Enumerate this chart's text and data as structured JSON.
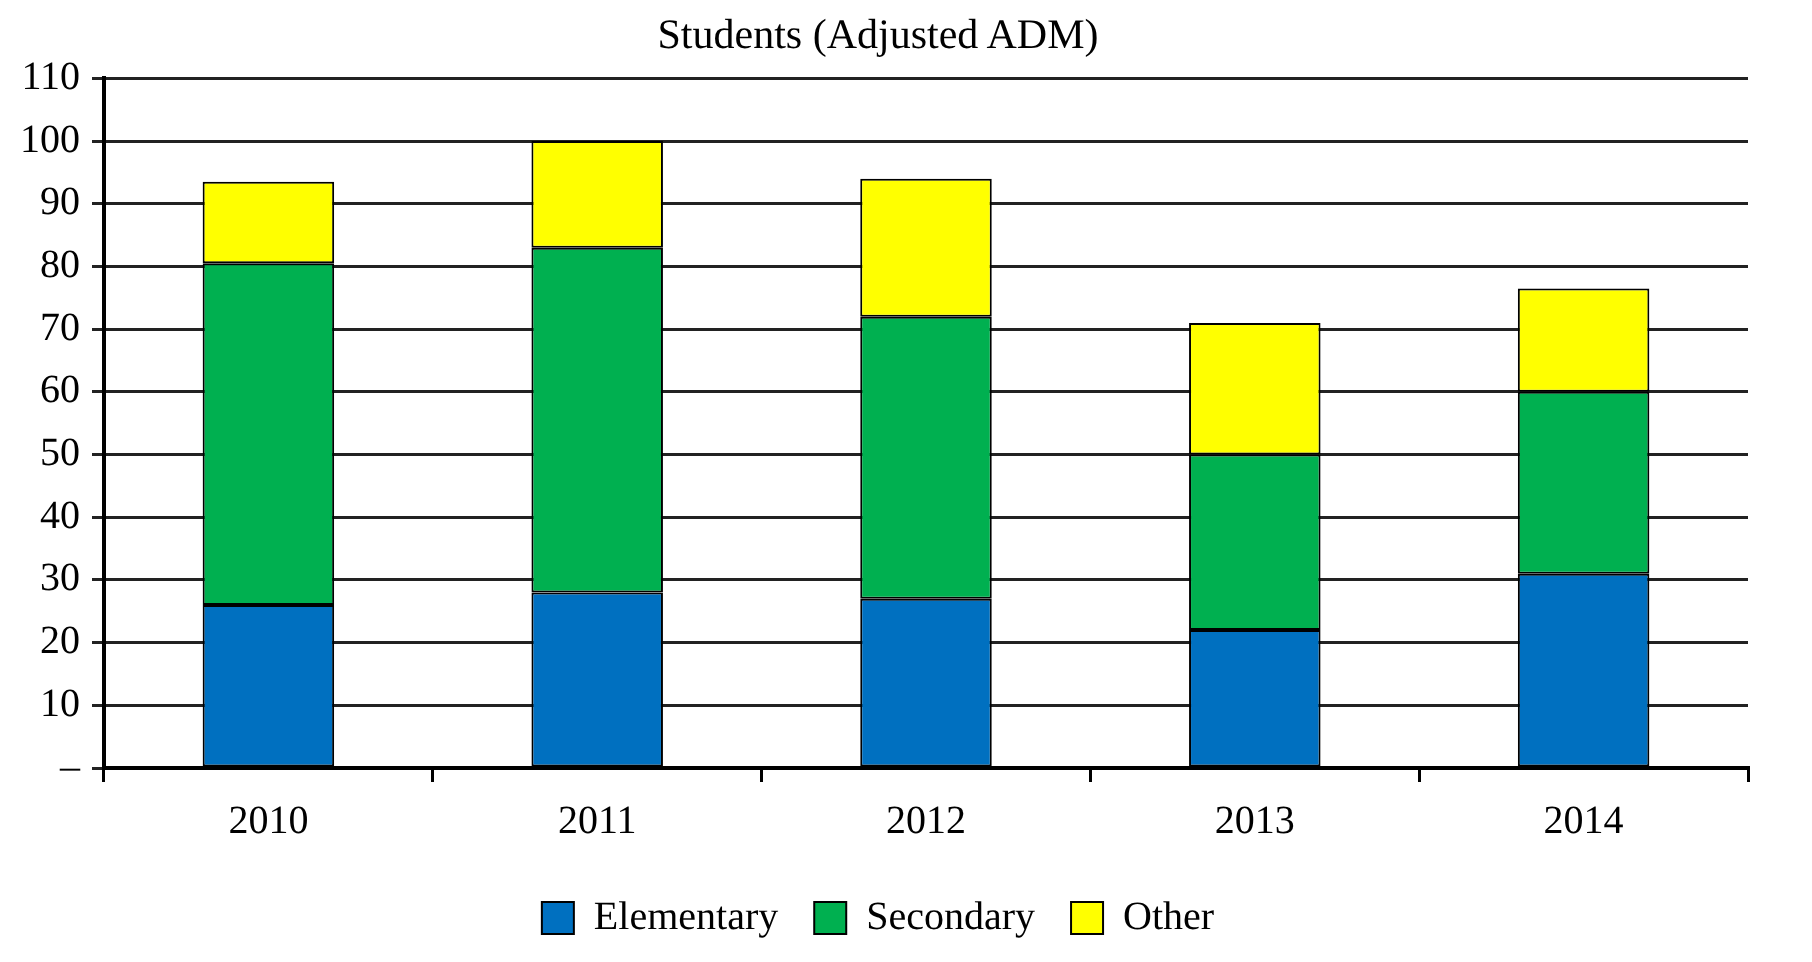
{
  "chart_data": {
    "type": "bar",
    "title": "Students (Adjusted ADM)",
    "categories": [
      "2010",
      "2011",
      "2012",
      "2013",
      "2014"
    ],
    "stacked": true,
    "series": [
      {
        "name": "Elementary",
        "color": "#0070c0",
        "values": [
          26,
          28,
          27,
          22,
          31
        ]
      },
      {
        "name": "Secondary",
        "color": "#00b050",
        "values": [
          54.5,
          55,
          45,
          28,
          29
        ]
      },
      {
        "name": "Other",
        "color": "#ffff00",
        "values": [
          13,
          17,
          22,
          21,
          16.5
        ]
      }
    ],
    "ylim": [
      0,
      110
    ],
    "yticks": [
      {
        "value": 0,
        "label": "–"
      },
      10,
      20,
      30,
      40,
      50,
      60,
      70,
      80,
      90,
      100,
      110
    ],
    "grid": "y",
    "legend": "bottom"
  }
}
